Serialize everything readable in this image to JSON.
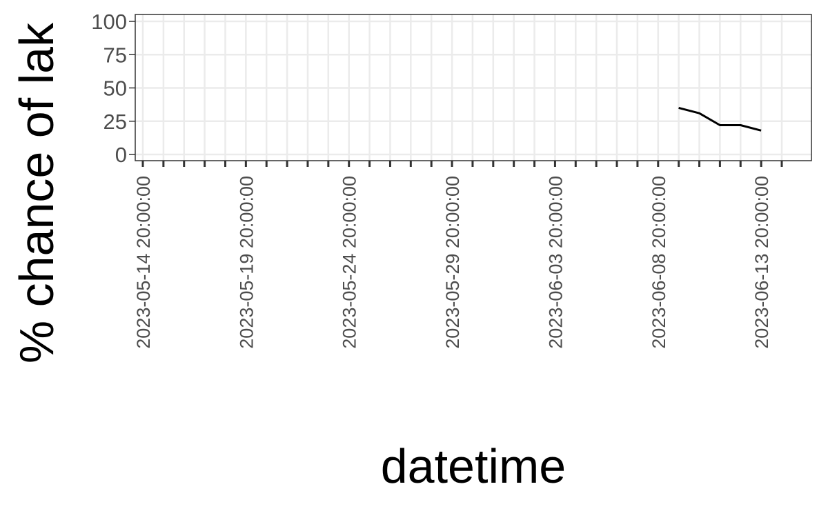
{
  "chart_data": {
    "type": "line",
    "title": "",
    "xlabel": "datetime",
    "ylabel": "% chance of lak",
    "ylim": [
      0,
      100
    ],
    "yticks": [
      0,
      25,
      50,
      75,
      100
    ],
    "xlim": [
      "2023-05-14",
      "2023-06-14"
    ],
    "xtick_labels": [
      "2023-05-14 20:00:00",
      "2023-05-19 20:00:00",
      "2023-05-24 20:00:00",
      "2023-05-29 20:00:00",
      "2023-06-03 20:00:00",
      "2023-06-08 20:00:00",
      "2023-06-13 20:00:00"
    ],
    "grid": true,
    "series": [
      {
        "x": [
          "2023-06-09",
          "2023-06-10",
          "2023-06-11",
          "2023-06-12",
          "2023-06-13"
        ],
        "y": [
          35,
          31,
          22,
          22,
          18
        ],
        "color": "#000000"
      }
    ]
  }
}
